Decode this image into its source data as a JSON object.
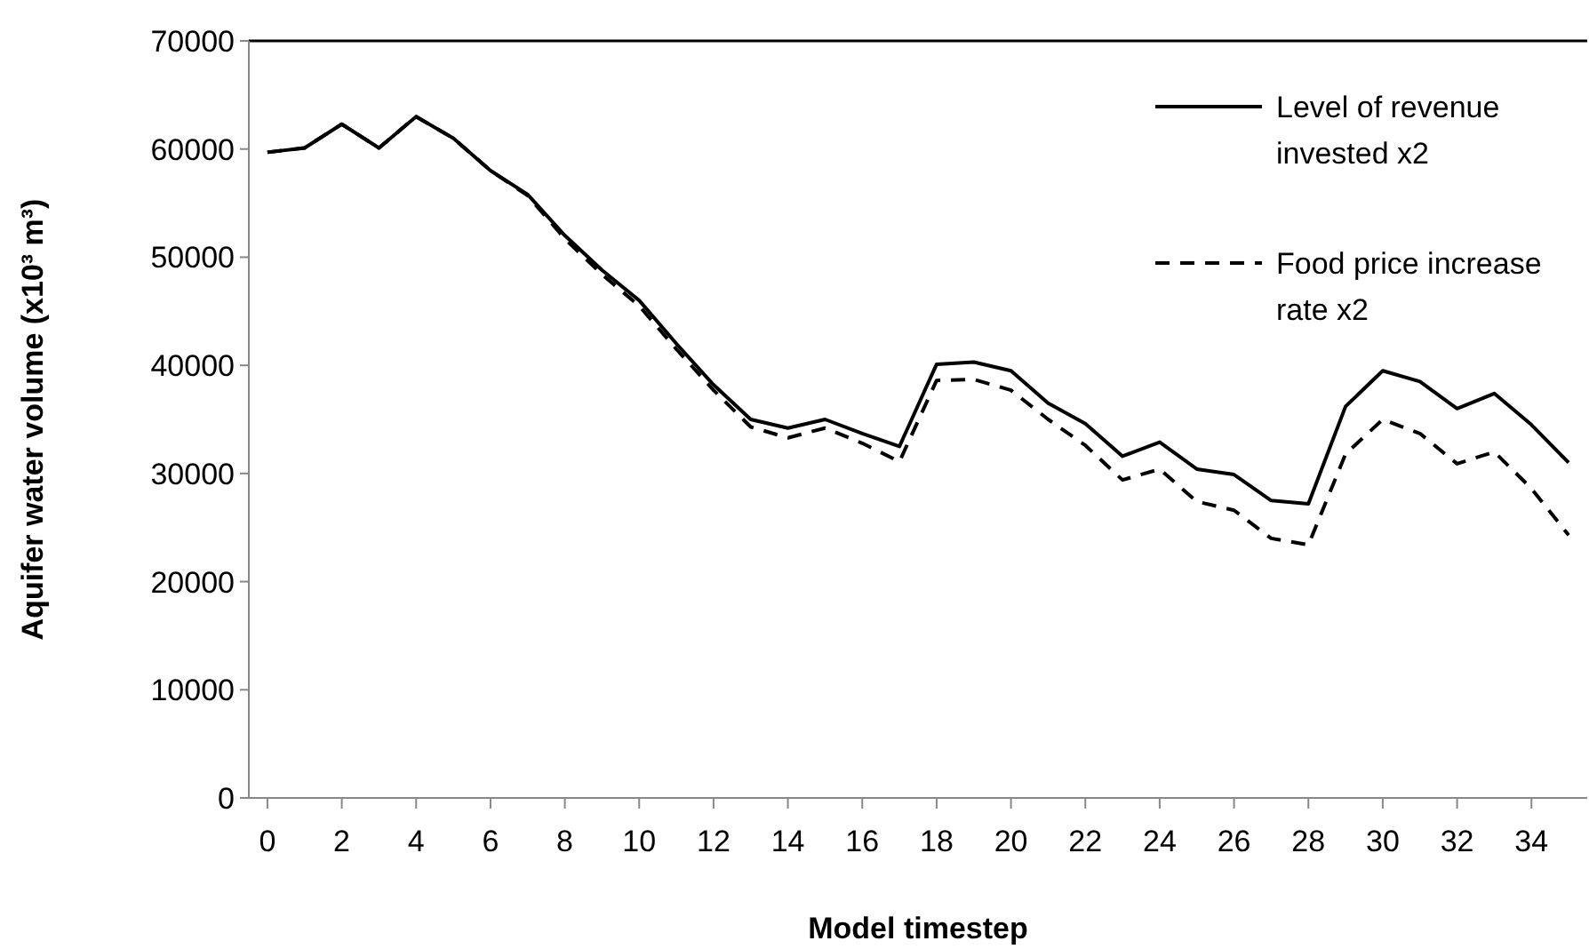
{
  "chart_data": {
    "type": "line",
    "xlabel": "Model timestep",
    "ylabel": "Aquifer water volume (x10³ m³)",
    "x": [
      0,
      1,
      2,
      3,
      4,
      5,
      6,
      7,
      8,
      9,
      10,
      11,
      12,
      13,
      14,
      15,
      16,
      17,
      18,
      19,
      20,
      21,
      22,
      23,
      24,
      25,
      26,
      27,
      28,
      29,
      30,
      31,
      32,
      33,
      34,
      35
    ],
    "xlim": [
      -0.5,
      35.5
    ],
    "xticks": [
      0,
      2,
      4,
      6,
      8,
      10,
      12,
      14,
      16,
      18,
      20,
      22,
      24,
      26,
      28,
      30,
      32,
      34
    ],
    "ylim": [
      0,
      70000
    ],
    "yticks": [
      0,
      10000,
      20000,
      30000,
      40000,
      50000,
      60000,
      70000
    ],
    "grid": false,
    "legend": "top right",
    "marker": "none",
    "series": [
      {
        "name": "Level of revenue invested x2",
        "color": "#000000",
        "line_style": "solid",
        "values": [
          59700,
          60100,
          62300,
          60100,
          63000,
          61000,
          58000,
          55800,
          52000,
          48800,
          46000,
          42000,
          38200,
          35000,
          34200,
          35000,
          33700,
          32500,
          40100,
          40300,
          39500,
          36500,
          34600,
          31600,
          32900,
          30400,
          29900,
          27500,
          27200,
          36200,
          39500,
          38500,
          36000,
          37400,
          34500,
          31000
        ]
      },
      {
        "name": "Food price increase rate x2",
        "color": "#000000",
        "line_style": "dashed",
        "values": [
          59700,
          60100,
          62300,
          60100,
          63000,
          61000,
          58000,
          55700,
          51700,
          48400,
          45500,
          41500,
          37700,
          34300,
          33300,
          34200,
          32800,
          31100,
          38600,
          38700,
          37700,
          35000,
          32600,
          29400,
          30400,
          27400,
          26600,
          24000,
          23400,
          31800,
          35000,
          33700,
          30900,
          32000,
          28600,
          24300
        ]
      }
    ]
  }
}
